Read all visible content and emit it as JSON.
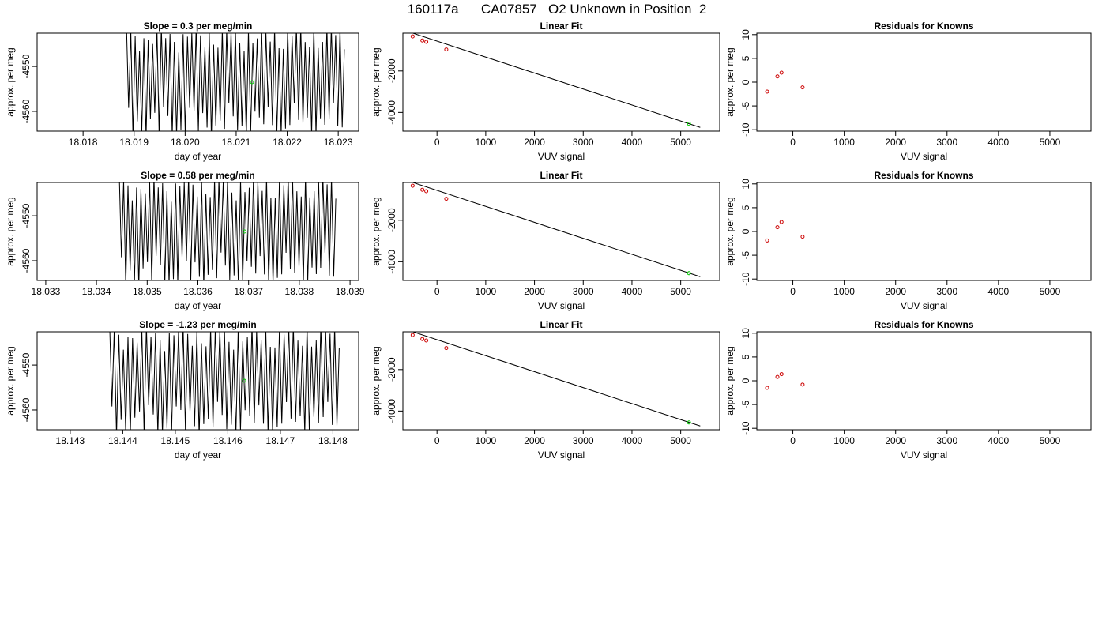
{
  "page_title": "160117a      CA07857   O2 Unknown in Position  2",
  "colors": {
    "trace": "#000000",
    "known_point": "#cc0000",
    "unknown_point": "#00cc00"
  },
  "chart_data": [
    {
      "type": "line",
      "title": "Slope =  0.3  per meg/min",
      "xlabel": "day of year",
      "ylabel": "approx. per meg",
      "xlim": [
        18.0171,
        18.0234
      ],
      "ylim": [
        -4564.4,
        -4542.6
      ],
      "xticks": [
        18.018,
        18.019,
        18.02,
        18.021,
        18.022,
        18.023
      ],
      "xtick_labels": [
        "18.018",
        "18.019",
        "18.020",
        "18.021",
        "18.022",
        "18.023"
      ],
      "yticks": [
        -4550,
        -4560
      ],
      "ytick_labels": [
        "-4550",
        "-4560"
      ],
      "trace": {
        "x_start": 18.01885,
        "x_end": 18.02312,
        "cycles": 50,
        "y_low": -4566,
        "y_high": -4541
      },
      "marker": {
        "x": 18.02131,
        "y": -4553.5
      }
    },
    {
      "type": "scatter",
      "title": "Linear Fit",
      "xlabel": "VUV signal",
      "ylabel": "approx. per meg",
      "xlim": [
        -700,
        5800
      ],
      "ylim": [
        -4900,
        -180
      ],
      "xticks": [
        0,
        1000,
        2000,
        3000,
        4000,
        5000
      ],
      "xtick_labels": [
        "0",
        "1000",
        "2000",
        "3000",
        "4000",
        "5000"
      ],
      "yticks": [
        -2000,
        -4000
      ],
      "ytick_labels": [
        "-2000",
        "-4000"
      ],
      "line": [
        [
          -520,
          -160
        ],
        [
          5400,
          -4720
        ]
      ],
      "knowns": [
        [
          -500,
          -335
        ],
        [
          -300,
          -530
        ],
        [
          -220,
          -600
        ],
        [
          190,
          -965
        ]
      ],
      "unknown": [
        5170,
        -4550
      ]
    },
    {
      "type": "scatter",
      "title": "Residuals for Knowns",
      "xlabel": "VUV signal",
      "ylabel": "approx. per meg",
      "xlim": [
        -700,
        5800
      ],
      "ylim": [
        -10.3,
        10.3
      ],
      "xticks": [
        0,
        1000,
        2000,
        3000,
        4000,
        5000
      ],
      "xtick_labels": [
        "0",
        "1000",
        "2000",
        "3000",
        "4000",
        "5000"
      ],
      "yticks": [
        10,
        5,
        0,
        -5,
        -10
      ],
      "ytick_labels": [
        "10",
        "5",
        "0",
        "-5",
        "-10"
      ],
      "points": [
        [
          -500,
          -2.0
        ],
        [
          -300,
          1.2
        ],
        [
          -220,
          2.0
        ],
        [
          190,
          -1.1
        ]
      ]
    },
    {
      "type": "line",
      "title": "Slope =  0.58  per meg/min",
      "xlabel": "day of year",
      "ylabel": "approx. per meg",
      "xlim": [
        18.03283,
        18.03917
      ],
      "ylim": [
        -4564.4,
        -4542.6
      ],
      "xticks": [
        18.033,
        18.034,
        18.035,
        18.036,
        18.037,
        18.038,
        18.039
      ],
      "xtick_labels": [
        "18.033",
        "18.034",
        "18.035",
        "18.036",
        "18.037",
        "18.038",
        "18.039"
      ],
      "yticks": [
        -4550,
        -4560
      ],
      "ytick_labels": [
        "-4550",
        "-4560"
      ],
      "trace": {
        "x_start": 18.03445,
        "x_end": 18.03872,
        "cycles": 50,
        "y_low": -4566,
        "y_high": -4541
      },
      "marker": {
        "x": 18.03692,
        "y": -4553.5
      }
    },
    {
      "type": "scatter",
      "title": "Linear Fit",
      "xlabel": "VUV signal",
      "ylabel": "approx. per meg",
      "xlim": [
        -700,
        5800
      ],
      "ylim": [
        -4900,
        -180
      ],
      "xticks": [
        0,
        1000,
        2000,
        3000,
        4000,
        5000
      ],
      "xtick_labels": [
        "0",
        "1000",
        "2000",
        "3000",
        "4000",
        "5000"
      ],
      "yticks": [
        -2000,
        -4000
      ],
      "ytick_labels": [
        "-2000",
        "-4000"
      ],
      "line": [
        [
          -520,
          -160
        ],
        [
          5400,
          -4720
        ]
      ],
      "knowns": [
        [
          -500,
          -335
        ],
        [
          -300,
          -530
        ],
        [
          -220,
          -600
        ],
        [
          190,
          -965
        ]
      ],
      "unknown": [
        5170,
        -4550
      ]
    },
    {
      "type": "scatter",
      "title": "Residuals for Knowns",
      "xlabel": "VUV signal",
      "ylabel": "approx. per meg",
      "xlim": [
        -700,
        5800
      ],
      "ylim": [
        -10.3,
        10.3
      ],
      "xticks": [
        0,
        1000,
        2000,
        3000,
        4000,
        5000
      ],
      "xtick_labels": [
        "0",
        "1000",
        "2000",
        "3000",
        "4000",
        "5000"
      ],
      "yticks": [
        10,
        5,
        0,
        -5,
        -10
      ],
      "ytick_labels": [
        "10",
        "5",
        "0",
        "-5",
        "-10"
      ],
      "points": [
        [
          -500,
          -1.9
        ],
        [
          -300,
          0.9
        ],
        [
          -220,
          2.0
        ],
        [
          190,
          -1.1
        ]
      ]
    },
    {
      "type": "line",
      "title": "Slope =  -1.23  per meg/min",
      "xlabel": "day of year",
      "ylabel": "approx. per meg",
      "xlim": [
        18.14237,
        18.14849
      ],
      "ylim": [
        -4564.4,
        -4542.6
      ],
      "xticks": [
        18.143,
        18.144,
        18.145,
        18.146,
        18.147,
        18.148
      ],
      "xtick_labels": [
        "18.143",
        "18.144",
        "18.145",
        "18.146",
        "18.147",
        "18.148"
      ],
      "yticks": [
        -4550,
        -4560
      ],
      "ytick_labels": [
        "-4550",
        "-4560"
      ],
      "trace": {
        "x_start": 18.14375,
        "x_end": 18.14812,
        "cycles": 50,
        "y_low": -4566,
        "y_high": -4541
      },
      "marker": {
        "x": 18.14631,
        "y": -4553.5
      }
    },
    {
      "type": "scatter",
      "title": "Linear Fit",
      "xlabel": "VUV signal",
      "ylabel": "approx. per meg",
      "xlim": [
        -700,
        5800
      ],
      "ylim": [
        -4900,
        -180
      ],
      "xticks": [
        0,
        1000,
        2000,
        3000,
        4000,
        5000
      ],
      "xtick_labels": [
        "0",
        "1000",
        "2000",
        "3000",
        "4000",
        "5000"
      ],
      "yticks": [
        -2000,
        -4000
      ],
      "ytick_labels": [
        "-2000",
        "-4000"
      ],
      "line": [
        [
          -520,
          -160
        ],
        [
          5400,
          -4720
        ]
      ],
      "knowns": [
        [
          -500,
          -335
        ],
        [
          -300,
          -530
        ],
        [
          -220,
          -600
        ],
        [
          190,
          -965
        ]
      ],
      "unknown": [
        5170,
        -4550
      ]
    },
    {
      "type": "scatter",
      "title": "Residuals for Knowns",
      "xlabel": "VUV signal",
      "ylabel": "approx. per meg",
      "xlim": [
        -700,
        5800
      ],
      "ylim": [
        -10.3,
        10.3
      ],
      "xticks": [
        0,
        1000,
        2000,
        3000,
        4000,
        5000
      ],
      "xtick_labels": [
        "0",
        "1000",
        "2000",
        "3000",
        "4000",
        "5000"
      ],
      "yticks": [
        10,
        5,
        0,
        -5,
        -10
      ],
      "ytick_labels": [
        "10",
        "5",
        "0",
        "-5",
        "-10"
      ],
      "points": [
        [
          -500,
          -1.5
        ],
        [
          -300,
          0.8
        ],
        [
          -220,
          1.4
        ],
        [
          190,
          -0.8
        ]
      ]
    }
  ]
}
